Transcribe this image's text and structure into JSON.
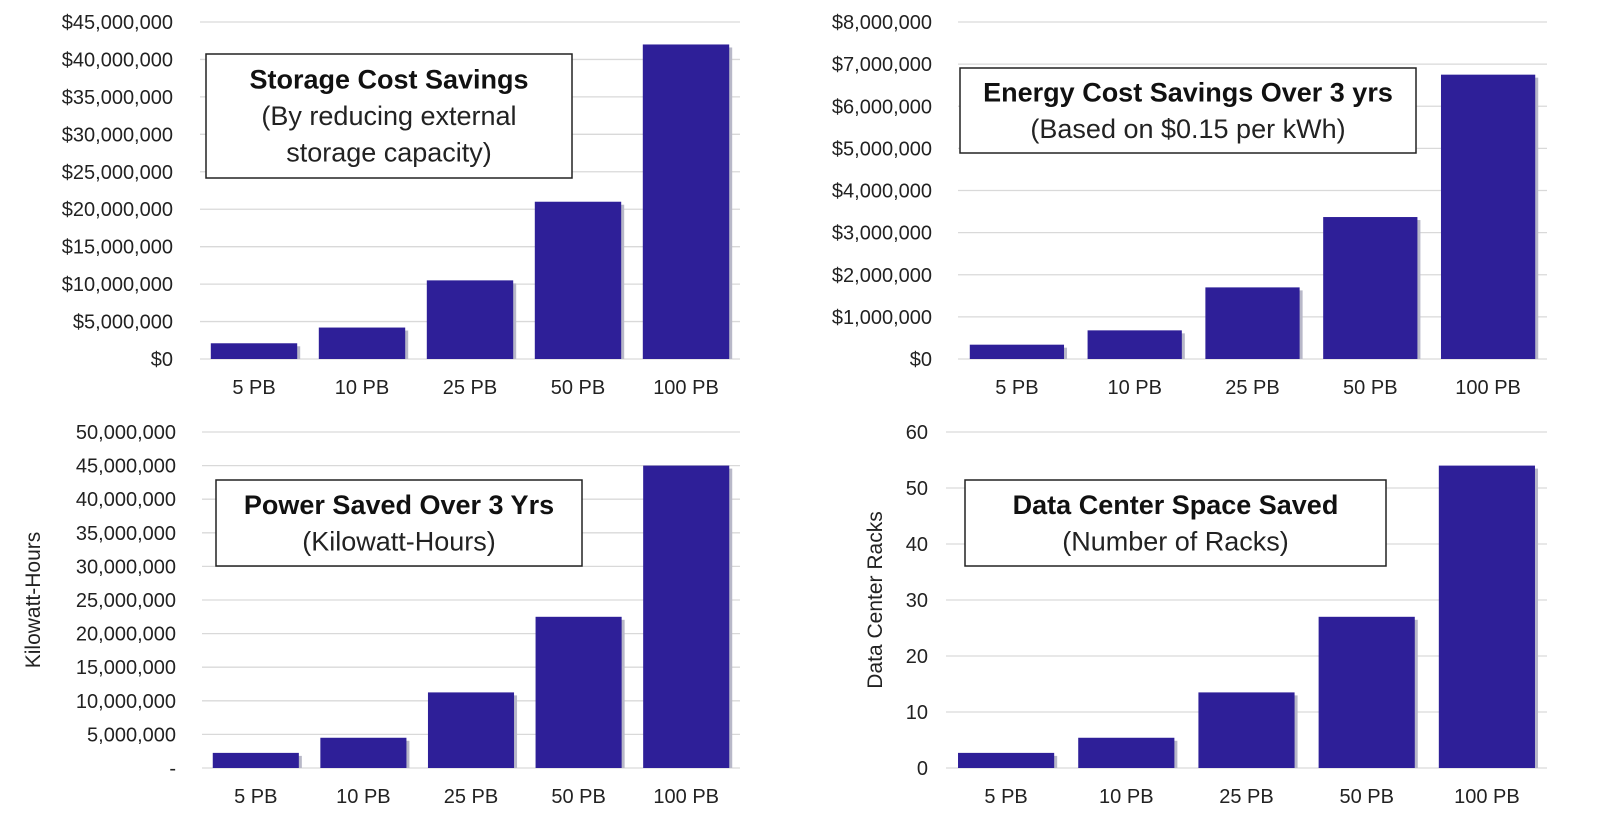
{
  "colors": {
    "bar": "#2e1f98",
    "shadow": "#b8b8c8",
    "grid": "#d9d9d9"
  },
  "chart_data": [
    {
      "type": "bar",
      "title": "Storage Cost Savings",
      "subtitle": [
        "(By reducing external",
        "storage capacity)"
      ],
      "categories": [
        "5 PB",
        "10 PB",
        "25 PB",
        "50 PB",
        "100 PB"
      ],
      "values": [
        2100000,
        4200000,
        10500000,
        21000000,
        42000000
      ],
      "ylabel": "",
      "ylim": [
        0,
        45000000
      ],
      "yticks": [
        0,
        5000000,
        10000000,
        15000000,
        20000000,
        25000000,
        30000000,
        35000000,
        40000000,
        45000000
      ],
      "ytick_labels": [
        "$0",
        "$5,000,000",
        "$10,000,000",
        "$15,000,000",
        "$20,000,000",
        "$25,000,000",
        "$30,000,000",
        "$35,000,000",
        "$40,000,000",
        "$45,000,000"
      ],
      "grid": true
    },
    {
      "type": "bar",
      "title": "Energy Cost Savings Over 3 yrs",
      "subtitle": [
        "(Based on $0.15 per kWh)"
      ],
      "categories": [
        "5 PB",
        "10 PB",
        "25 PB",
        "50 PB",
        "100 PB"
      ],
      "values": [
        340000,
        680000,
        1700000,
        3370000,
        6750000
      ],
      "ylabel": "",
      "ylim": [
        0,
        8000000
      ],
      "yticks": [
        0,
        1000000,
        2000000,
        3000000,
        4000000,
        5000000,
        6000000,
        7000000,
        8000000
      ],
      "ytick_labels": [
        "$0",
        "$1,000,000",
        "$2,000,000",
        "$3,000,000",
        "$4,000,000",
        "$5,000,000",
        "$6,000,000",
        "$7,000,000",
        "$8,000,000"
      ],
      "grid": true
    },
    {
      "type": "bar",
      "title": "Power Saved Over 3 Yrs",
      "subtitle": [
        "(Kilowatt-Hours)"
      ],
      "categories": [
        "5 PB",
        "10 PB",
        "25 PB",
        "50 PB",
        "100 PB"
      ],
      "values": [
        2250000,
        4500000,
        11250000,
        22500000,
        45000000
      ],
      "ylabel": "Kilowatt-Hours",
      "ylim": [
        0,
        50000000
      ],
      "yticks": [
        0,
        5000000,
        10000000,
        15000000,
        20000000,
        25000000,
        30000000,
        35000000,
        40000000,
        45000000,
        50000000
      ],
      "ytick_labels": [
        "-",
        "5,000,000",
        "10,000,000",
        "15,000,000",
        "20,000,000",
        "25,000,000",
        "30,000,000",
        "35,000,000",
        "40,000,000",
        "45,000,000",
        "50,000,000"
      ],
      "grid": true
    },
    {
      "type": "bar",
      "title": "Data Center Space Saved",
      "subtitle": [
        "(Number of Racks)"
      ],
      "categories": [
        "5 PB",
        "10 PB",
        "25 PB",
        "50 PB",
        "100 PB"
      ],
      "values": [
        2.7,
        5.4,
        13.5,
        27,
        54
      ],
      "ylabel": "Data Center Racks",
      "ylim": [
        0,
        60
      ],
      "yticks": [
        0,
        10,
        20,
        30,
        40,
        50,
        60
      ],
      "ytick_labels": [
        "0",
        "10",
        "20",
        "30",
        "40",
        "50",
        "60"
      ],
      "grid": true
    }
  ]
}
